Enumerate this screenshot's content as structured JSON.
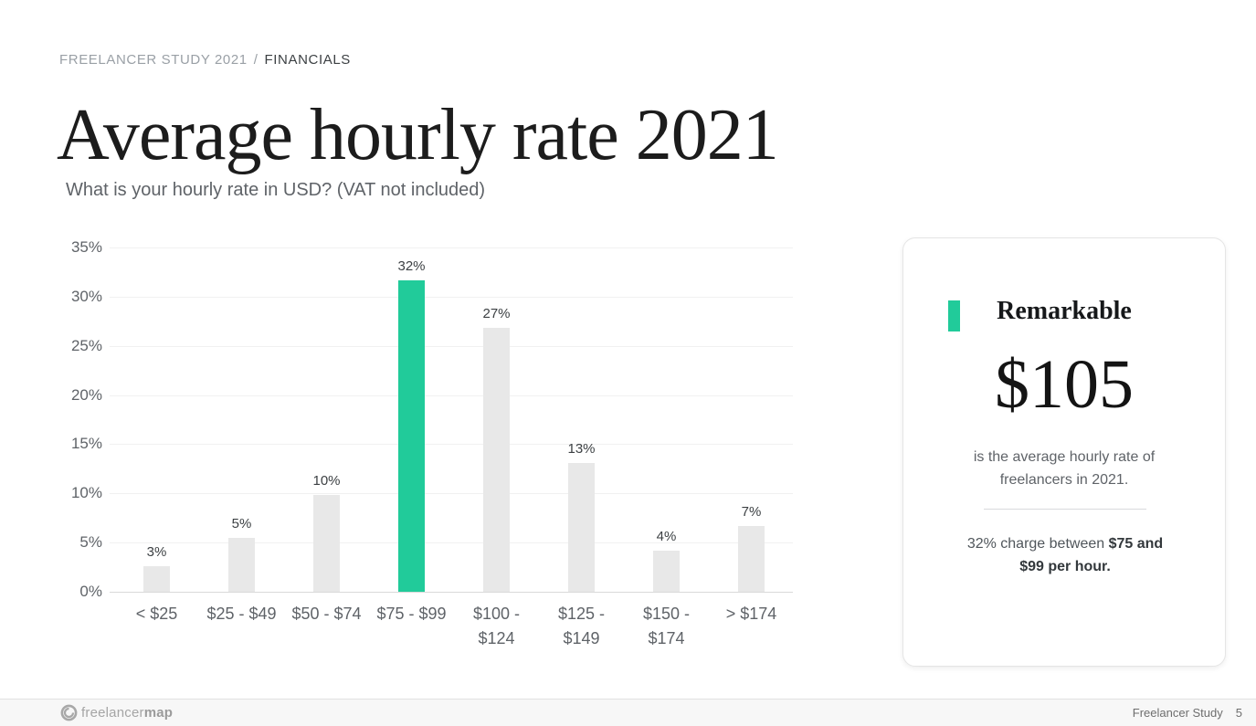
{
  "breadcrumb": {
    "section": "FREELANCER STUDY 2021",
    "separator": "/",
    "page": "FINANCIALS"
  },
  "header": {
    "title": "Average hourly rate 2021",
    "subtitle": "What is your hourly rate in USD? (VAT not included)"
  },
  "chart_data": {
    "type": "bar",
    "title": "What is your hourly rate in USD? (VAT not included)",
    "categories": [
      "< $25",
      "$25 - $49",
      "$50 - $74",
      "$75 - $99",
      "$100 - $124",
      "$125 - $149",
      "$150 - $174",
      "> $174"
    ],
    "values": [
      3,
      5,
      10,
      32,
      27,
      13,
      4,
      7
    ],
    "value_labels": [
      "3%",
      "5%",
      "10%",
      "32%",
      "27%",
      "13%",
      "4%",
      "7%"
    ],
    "display_heights_pct": [
      2.6,
      5.5,
      9.8,
      31.7,
      26.8,
      13.1,
      4.2,
      6.7
    ],
    "highlight_index": 3,
    "highlight_color": "#21cb9a",
    "bar_color": "#e8e8e8",
    "xlabel": "",
    "ylabel": "",
    "ylim": [
      0,
      35
    ],
    "ytick_step": 5,
    "ytick_labels": [
      "0%",
      "5%",
      "10%",
      "15%",
      "20%",
      "25%",
      "30%",
      "35%"
    ],
    "grid": true,
    "legend": false
  },
  "card": {
    "heading": "Remarkable",
    "big_value": "$105",
    "description_line1": "is the average hourly rate of",
    "description_line2": "freelancers in 2021.",
    "note_prefix": "32% charge between ",
    "note_bold": "$75 and $99 per hour.",
    "accent_color": "#21cb9a"
  },
  "footer": {
    "logo_regular": "freelancer",
    "logo_bold": "map",
    "doc_title": "Freelancer Study",
    "page_number": "5"
  },
  "colors": {
    "accent_teal": "#21cb9a",
    "bar_gray": "#e8e8e8",
    "text_dark": "#3c4043",
    "text_gray": "#5f6368",
    "breadcrumb_muted": "#9aa0a6",
    "footer_bg": "#f7f7f7"
  }
}
